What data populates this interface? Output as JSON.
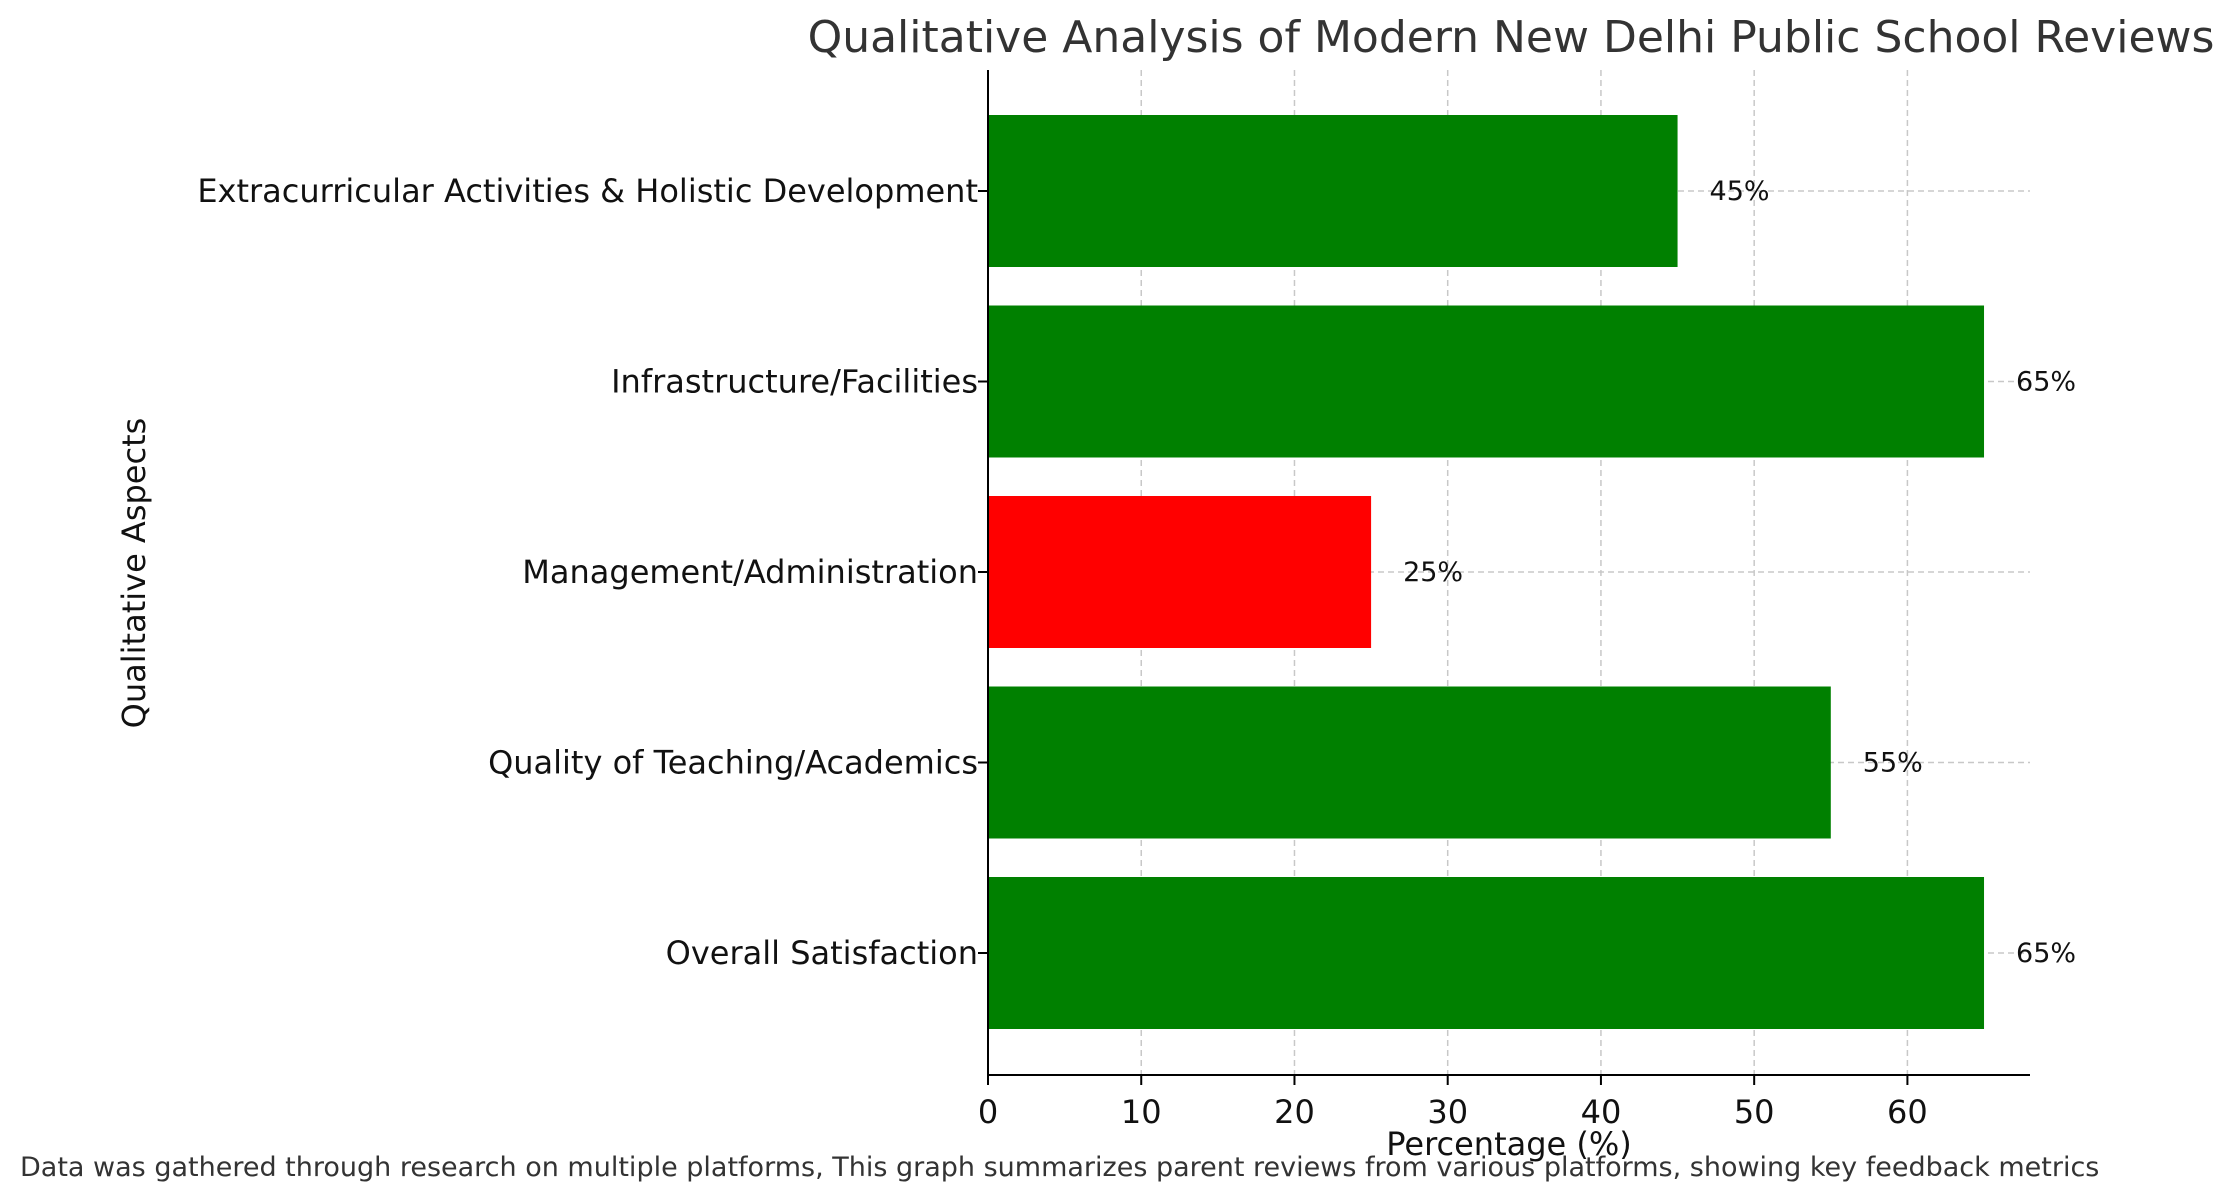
{
  "chart_data": {
    "type": "bar",
    "orientation": "horizontal",
    "title": "Qualitative Analysis of Modern New Delhi Public School Reviews",
    "xlabel": "Percentage (%)",
    "ylabel": "Qualitative Aspects",
    "categories": [
      "Overall Satisfaction",
      "Quality of Teaching/Academics",
      "Management/Administration",
      "Infrastructure/Facilities",
      "Extracurricular Activities & Holistic Development"
    ],
    "values": [
      65,
      55,
      25,
      65,
      45
    ],
    "value_labels": [
      "65%",
      "55%",
      "25%",
      "65%",
      "45%"
    ],
    "bar_colors": [
      "#008000",
      "#008000",
      "#ff0000",
      "#008000",
      "#008000"
    ],
    "xlim": [
      0,
      68
    ],
    "xticks": [
      0,
      10,
      20,
      30,
      40,
      50,
      60
    ],
    "grid": true
  },
  "footnote": "Data was gathered through research on multiple platforms, This graph summarizes parent reviews from various platforms, showing key feedback metrics"
}
